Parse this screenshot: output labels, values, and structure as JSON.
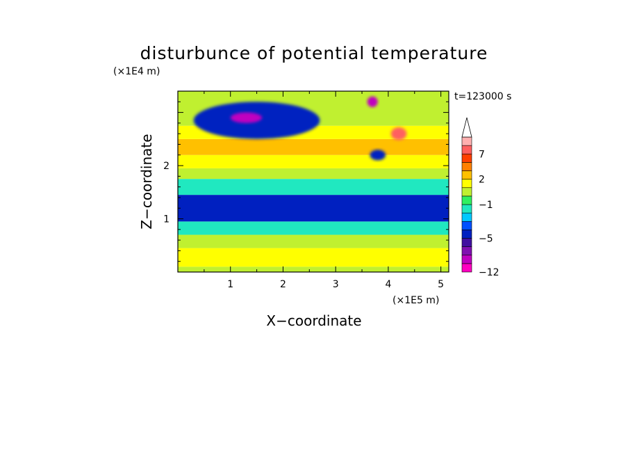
{
  "chart_data": {
    "type": "heatmap",
    "title": "disturbunce of potential temperature",
    "xlabel": "X−coordinate",
    "ylabel": "Z−coordinate",
    "x_unit": "(×1E5 m)",
    "y_unit": "(×1E4 m)",
    "time_label": "t=123000 s",
    "xlim": [
      0,
      5.15
    ],
    "ylim": [
      0,
      3.4
    ],
    "x_ticks": [
      1,
      2,
      3,
      4,
      5
    ],
    "y_ticks": [
      1,
      2
    ],
    "colorbar": {
      "levels": [
        -12,
        -10,
        -8,
        -6,
        -5,
        -4,
        -3,
        -2,
        -1,
        0,
        1,
        2,
        3,
        5,
        7,
        9,
        11
      ],
      "tick_labels": [
        "−12",
        "−5",
        "−1",
        "2",
        "7"
      ],
      "tick_values": [
        -12,
        -5,
        -1,
        2,
        7
      ],
      "colors": [
        "#ff00c0",
        "#c000c0",
        "#8010b0",
        "#4010a0",
        "#0020c0",
        "#0050ff",
        "#00c8ff",
        "#20e8c0",
        "#30f060",
        "#c0f030",
        "#ffff00",
        "#ffc000",
        "#ff8000",
        "#ff4000",
        "#ff6060",
        "#ffb0b0"
      ],
      "extend": "max"
    },
    "bands": [
      {
        "z": [
          0.0,
          0.1
        ],
        "value": 0.5
      },
      {
        "z": [
          0.1,
          0.45
        ],
        "value": 1.5
      },
      {
        "z": [
          0.45,
          0.7
        ],
        "value": 0.5
      },
      {
        "z": [
          0.7,
          0.95
        ],
        "value": -1.5
      },
      {
        "z": [
          0.95,
          1.45
        ],
        "value": -4.5
      },
      {
        "z": [
          1.45,
          1.75
        ],
        "value": -1.5
      },
      {
        "z": [
          1.75,
          1.95
        ],
        "value": 0.5
      },
      {
        "z": [
          1.95,
          2.2
        ],
        "value": 1.5
      },
      {
        "z": [
          2.2,
          2.5
        ],
        "value": 2.5
      },
      {
        "z": [
          2.5,
          2.75
        ],
        "value": 1.5
      },
      {
        "z": [
          2.75,
          3.4
        ],
        "value": 0.5
      }
    ],
    "features": [
      {
        "x": 1.5,
        "z": 2.85,
        "rx": 1.2,
        "rz": 0.35,
        "value": -4.5
      },
      {
        "x": 1.3,
        "z": 2.9,
        "rx": 0.3,
        "rz": 0.1,
        "value": -9
      },
      {
        "x": 3.8,
        "z": 2.2,
        "rx": 0.15,
        "rz": 0.1,
        "value": -4.5
      },
      {
        "x": 4.2,
        "z": 2.6,
        "rx": 0.15,
        "rz": 0.12,
        "value": 8
      },
      {
        "x": 3.7,
        "z": 3.2,
        "rx": 0.1,
        "rz": 0.1,
        "value": -9
      }
    ]
  }
}
